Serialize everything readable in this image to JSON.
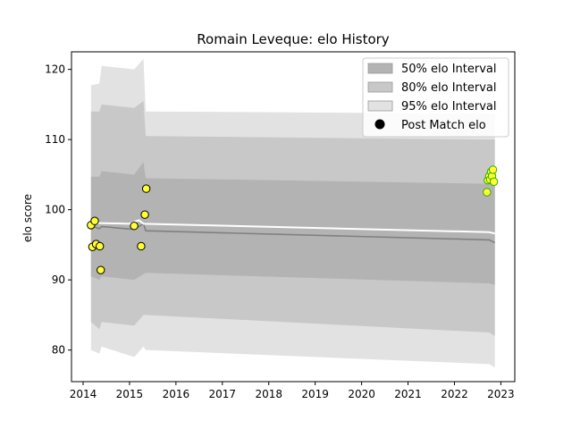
{
  "chart_data": {
    "type": "area",
    "title": "Romain Leveque: elo History",
    "xlabel": "",
    "ylabel": "elo score",
    "xlim": [
      2013.75,
      2023.3
    ],
    "ylim": [
      75.5,
      122.5
    ],
    "xticks": [
      2014,
      2015,
      2016,
      2017,
      2018,
      2019,
      2020,
      2021,
      2022,
      2023
    ],
    "yticks": [
      80,
      90,
      100,
      110,
      120
    ],
    "grid": false,
    "legend_position": "top-right",
    "legend": [
      {
        "label": "50% elo Interval",
        "color": "#b3b3b3"
      },
      {
        "label": "80% elo Interval",
        "color": "#c8c8c8"
      },
      {
        "label": "95% elo Interval",
        "color": "#e2e2e2"
      },
      {
        "label": "Post Match elo",
        "color": "#000000"
      }
    ],
    "bands": [
      {
        "name": "95% elo Interval",
        "color": "#e2e2e2",
        "x": [
          2014.17,
          2014.35,
          2014.4,
          2015.1,
          2015.3,
          2015.35,
          2022.75,
          2022.87
        ],
        "upper": [
          117.7,
          118.0,
          120.5,
          120.0,
          121.5,
          114.0,
          113.7,
          113.7
        ],
        "lower": [
          80.0,
          79.5,
          80.5,
          79.0,
          80.5,
          80.0,
          78.0,
          77.5
        ]
      },
      {
        "name": "80% elo Interval",
        "color": "#c8c8c8",
        "x": [
          2014.17,
          2014.35,
          2014.4,
          2015.1,
          2015.3,
          2015.35,
          2022.75,
          2022.87
        ],
        "upper": [
          114.0,
          114.0,
          115.0,
          114.5,
          115.5,
          110.5,
          110.0,
          110.0
        ],
        "lower": [
          84.0,
          83.0,
          84.0,
          83.5,
          85.0,
          85.0,
          82.5,
          82.0
        ]
      },
      {
        "name": "50% elo Interval",
        "color": "#b3b3b3",
        "x": [
          2014.17,
          2014.35,
          2014.4,
          2015.1,
          2015.3,
          2015.35,
          2022.75,
          2022.87
        ],
        "upper": [
          104.7,
          104.7,
          105.5,
          105.0,
          106.8,
          104.5,
          103.7,
          103.7
        ],
        "lower": [
          90.5,
          90.0,
          90.5,
          90.0,
          90.8,
          91.0,
          89.5,
          89.3
        ]
      }
    ],
    "mean_line": {
      "color": "#808080",
      "x": [
        2014.17,
        2014.35,
        2014.4,
        2015.1,
        2015.3,
        2015.35,
        2022.75,
        2022.87
      ],
      "y": [
        97.7,
        97.3,
        97.6,
        97.2,
        98.0,
        97.0,
        95.7,
        95.3
      ]
    },
    "white_line": {
      "color": "#ffffff",
      "x": [
        2014.17,
        2014.35,
        2015.0,
        2015.2,
        2015.3,
        2022.75,
        2022.87
      ],
      "y": [
        98.0,
        98.1,
        98.0,
        98.5,
        98.0,
        96.8,
        96.6
      ]
    },
    "series": [
      {
        "name": "Post Match elo",
        "marker_fill": "#ffff33",
        "marker_edge": "#000000",
        "x": [
          2014.17,
          2014.2,
          2014.25,
          2014.28,
          2014.36,
          2014.38,
          2015.1,
          2015.25,
          2015.33,
          2015.36
        ],
        "y": [
          97.8,
          94.7,
          98.4,
          95.1,
          94.8,
          91.4,
          97.7,
          94.8,
          99.3,
          103.0
        ]
      },
      {
        "name": "Post Match elo",
        "marker_fill": "#ffff33",
        "marker_edge": "#33aa00",
        "x": [
          2022.7,
          2022.72,
          2022.75,
          2022.77,
          2022.79,
          2022.81,
          2022.83,
          2022.85
        ],
        "y": [
          102.5,
          104.2,
          104.8,
          104.3,
          105.4,
          104.8,
          105.7,
          104.0
        ]
      }
    ]
  }
}
